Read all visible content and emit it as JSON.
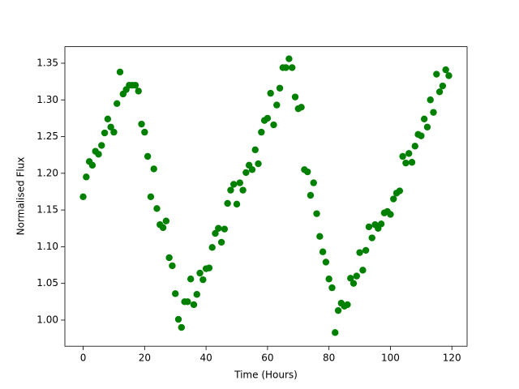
{
  "chart_data": {
    "type": "scatter",
    "xlabel": "Time (Hours)",
    "ylabel": "Normalised Flux",
    "x": [
      0,
      1,
      2,
      3,
      4,
      5,
      6,
      7,
      8,
      9,
      10,
      11,
      12,
      13,
      14,
      15,
      16,
      17,
      18,
      19,
      20,
      21,
      22,
      23,
      24,
      25,
      26,
      27,
      28,
      29,
      30,
      31,
      32,
      33,
      34,
      35,
      36,
      37,
      38,
      39,
      40,
      41,
      42,
      43,
      44,
      45,
      46,
      47,
      48,
      49,
      50,
      51,
      52,
      53,
      54,
      55,
      56,
      57,
      58,
      59,
      60,
      61,
      62,
      63,
      64,
      65,
      66,
      67,
      68,
      69,
      70,
      71,
      72,
      73,
      74,
      75,
      76,
      77,
      78,
      79,
      80,
      81,
      82,
      83,
      84,
      85,
      86,
      87,
      88,
      89,
      90,
      91,
      92,
      93,
      94,
      95,
      96,
      97,
      98,
      99,
      100,
      101,
      102,
      103,
      104,
      105,
      106,
      107,
      108,
      109,
      110,
      111,
      112,
      113,
      114,
      115,
      116,
      117,
      118,
      119
    ],
    "series": [
      {
        "color": "#008000",
        "values": [
          1.168,
          1.195,
          1.216,
          1.211,
          1.23,
          1.226,
          1.238,
          1.255,
          1.274,
          1.263,
          1.256,
          1.295,
          1.338,
          1.308,
          1.314,
          1.32,
          1.32,
          1.32,
          1.312,
          1.267,
          1.256,
          1.223,
          1.168,
          1.206,
          1.152,
          1.13,
          1.126,
          1.135,
          1.085,
          1.074,
          1.036,
          1.001,
          0.99,
          1.025,
          1.025,
          1.056,
          1.021,
          1.035,
          1.064,
          1.055,
          1.07,
          1.071,
          1.099,
          1.118,
          1.125,
          1.106,
          1.124,
          1.159,
          1.177,
          1.185,
          1.158,
          1.187,
          1.177,
          1.201,
          1.211,
          1.205,
          1.232,
          1.213,
          1.256,
          1.272,
          1.275,
          1.309,
          1.266,
          1.293,
          1.316,
          1.344,
          1.344,
          1.356,
          1.344,
          1.304,
          1.288,
          1.29,
          1.205,
          1.202,
          1.17,
          1.187,
          1.145,
          1.114,
          1.093,
          1.079,
          1.056,
          1.044,
          0.983,
          1.013,
          1.023,
          1.019,
          1.021,
          1.057,
          1.05,
          1.06,
          1.092,
          1.068,
          1.095,
          1.127,
          1.112,
          1.13,
          1.125,
          1.131,
          1.146,
          1.148,
          1.144,
          1.165,
          1.173,
          1.176,
          1.223,
          1.214,
          1.227,
          1.215,
          1.237,
          1.253,
          1.251,
          1.274,
          1.263,
          1.3,
          1.283,
          1.335,
          1.311,
          1.319,
          1.341,
          1.333
        ]
      }
    ],
    "xlim": [
      -5.95,
      124.95
    ],
    "xticks": [
      0,
      20,
      40,
      60,
      80,
      100,
      120
    ],
    "ylim": [
      0.9644,
      1.3725
    ],
    "yticks": [
      {
        "value": 1.0,
        "label": "1.00"
      },
      {
        "value": 1.05,
        "label": "1.05"
      },
      {
        "value": 1.1,
        "label": "1.10"
      },
      {
        "value": 1.15,
        "label": "1.15"
      },
      {
        "value": 1.2,
        "label": "1.20"
      },
      {
        "value": 1.25,
        "label": "1.25"
      },
      {
        "value": 1.3,
        "label": "1.30"
      },
      {
        "value": 1.35,
        "label": "1.35"
      }
    ],
    "grid": false
  }
}
